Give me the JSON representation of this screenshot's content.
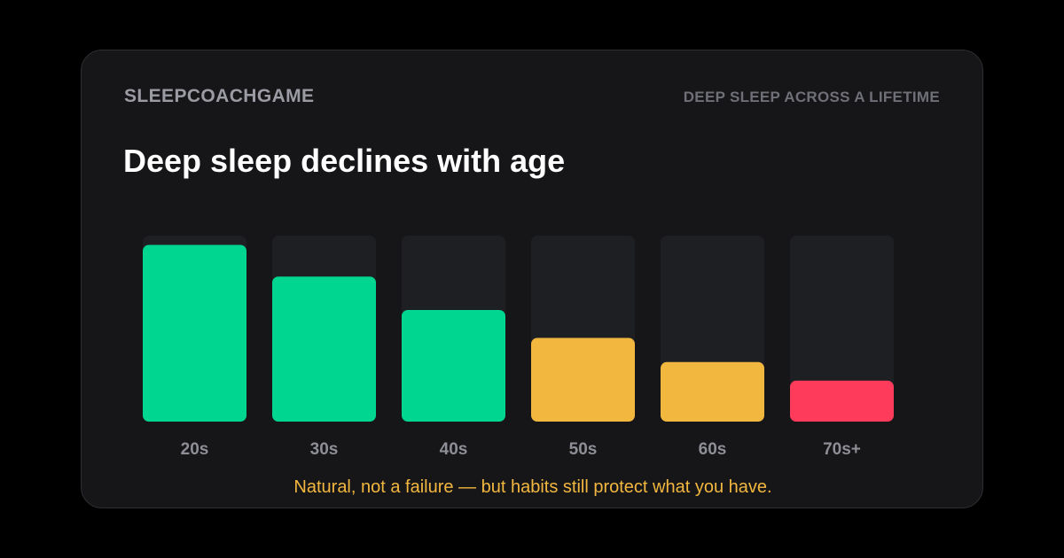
{
  "header": {
    "brand": "SLEEPCOACHGAME",
    "kicker": "DEEP SLEEP ACROSS A LIFETIME"
  },
  "title": "Deep sleep declines with age",
  "caption": "Natural, not a failure — but habits still protect what you have.",
  "colors": {
    "good": "#00d68f",
    "warn": "#f2b73f",
    "low": "#ff3b5c",
    "track": "#1e1f23",
    "tick": "#8e8e96"
  },
  "chart_data": {
    "type": "bar",
    "title": "Deep sleep declines with age",
    "categories": [
      "20s",
      "30s",
      "40s",
      "50s",
      "60s",
      "70s+"
    ],
    "values": [
      95,
      78,
      60,
      45,
      32,
      22
    ],
    "levels": [
      "good",
      "good",
      "good",
      "warn",
      "warn",
      "low"
    ],
    "ylim": [
      0,
      100
    ],
    "grid": false
  }
}
